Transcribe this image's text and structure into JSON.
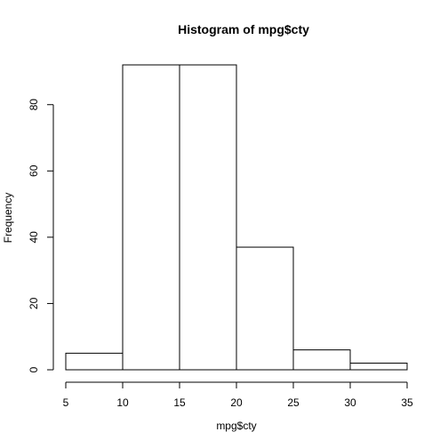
{
  "chart_data": {
    "type": "bar",
    "title": "Histogram of mpg$cty",
    "xlabel": "mpg$cty",
    "ylabel": "Frequency",
    "bins": [
      {
        "start": 5,
        "end": 10,
        "count": 5
      },
      {
        "start": 10,
        "end": 15,
        "count": 92
      },
      {
        "start": 15,
        "end": 20,
        "count": 92
      },
      {
        "start": 20,
        "end": 25,
        "count": 37
      },
      {
        "start": 25,
        "end": 30,
        "count": 6
      },
      {
        "start": 30,
        "end": 35,
        "count": 2
      }
    ],
    "xlim": [
      5,
      35
    ],
    "ylim": [
      0,
      92
    ],
    "xticks": [
      "5",
      "10",
      "15",
      "20",
      "25",
      "30",
      "35"
    ],
    "yticks": [
      "0",
      "20",
      "40",
      "60",
      "80"
    ],
    "bar_fill": "#ffffff",
    "bar_stroke": "#000000",
    "grid": false,
    "legend": "none"
  }
}
